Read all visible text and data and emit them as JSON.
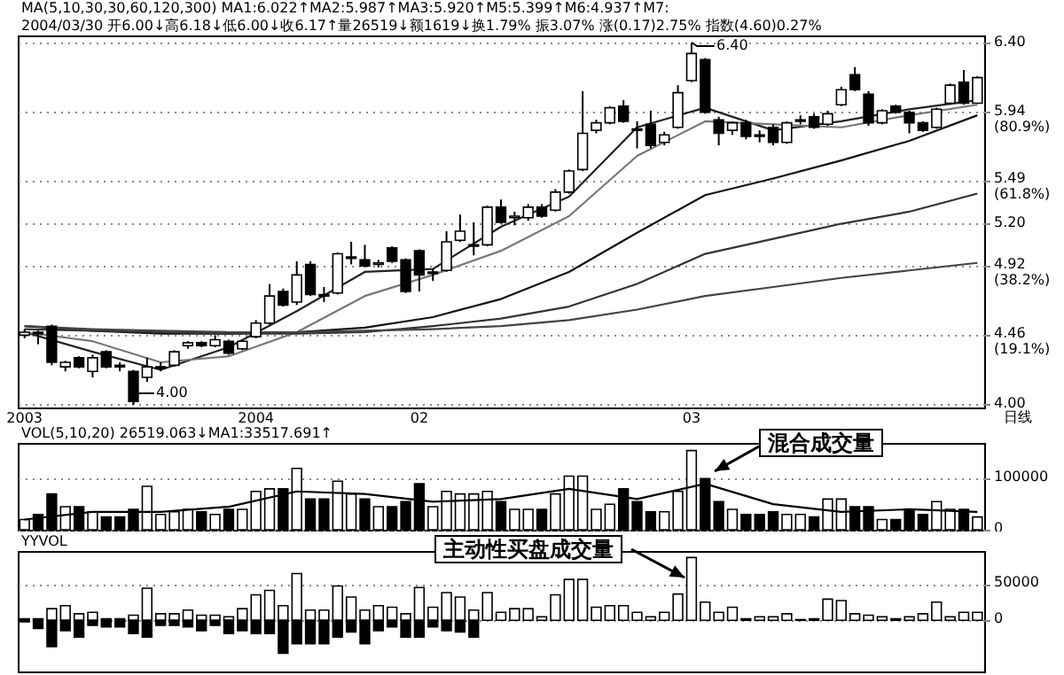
{
  "chart_data": [
    {
      "type": "candlestick",
      "categories": [
        "2003",
        null,
        null,
        null,
        null,
        null,
        null,
        null,
        null,
        null,
        null,
        null,
        null,
        null,
        null,
        null,
        null,
        "2004",
        null,
        null,
        null,
        null,
        null,
        null,
        null,
        null,
        null,
        null,
        null,
        "02",
        null,
        null,
        null,
        null,
        null,
        null,
        null,
        null,
        null,
        null,
        null,
        null,
        null,
        null,
        null,
        null,
        null,
        null,
        null,
        "03",
        null,
        null,
        null,
        null,
        null,
        null,
        null,
        null,
        null,
        null,
        null,
        null,
        null,
        null,
        null,
        null,
        null,
        null,
        null,
        null,
        null
      ],
      "ohlc": [
        [
          4.46,
          4.5,
          4.44,
          4.48
        ],
        [
          4.48,
          4.49,
          4.4,
          4.47
        ],
        [
          4.52,
          4.53,
          4.26,
          4.28
        ],
        [
          4.25,
          4.29,
          4.22,
          4.28
        ],
        [
          4.31,
          4.32,
          4.24,
          4.25
        ],
        [
          4.22,
          4.33,
          4.18,
          4.31
        ],
        [
          4.35,
          4.36,
          4.24,
          4.25
        ],
        [
          4.26,
          4.28,
          4.22,
          4.25
        ],
        [
          4.22,
          4.23,
          4.0,
          4.02
        ],
        [
          4.18,
          4.31,
          4.15,
          4.25
        ],
        [
          4.24,
          4.28,
          4.22,
          4.25
        ],
        [
          4.26,
          4.36,
          4.25,
          4.35
        ],
        [
          4.39,
          4.42,
          4.37,
          4.41
        ],
        [
          4.41,
          4.42,
          4.38,
          4.39
        ],
        [
          4.39,
          4.46,
          4.38,
          4.43
        ],
        [
          4.42,
          4.43,
          4.33,
          4.34
        ],
        [
          4.37,
          4.43,
          4.36,
          4.42
        ],
        [
          4.45,
          4.56,
          4.44,
          4.54
        ],
        [
          4.54,
          4.8,
          4.53,
          4.72
        ],
        [
          4.75,
          4.77,
          4.65,
          4.66
        ],
        [
          4.68,
          4.95,
          4.66,
          4.86
        ],
        [
          4.93,
          4.95,
          4.72,
          4.73
        ],
        [
          4.73,
          4.78,
          4.68,
          4.72
        ],
        [
          4.74,
          5.01,
          4.73,
          5.0
        ],
        [
          4.97,
          5.08,
          4.93,
          4.98
        ],
        [
          4.96,
          5.06,
          4.91,
          4.92
        ],
        [
          4.93,
          4.96,
          4.91,
          4.94
        ],
        [
          5.04,
          5.05,
          4.94,
          4.95
        ],
        [
          4.96,
          4.97,
          4.74,
          4.75
        ],
        [
          5.02,
          5.03,
          4.75,
          4.86
        ],
        [
          4.87,
          4.9,
          4.82,
          4.88
        ],
        [
          4.89,
          5.15,
          4.88,
          5.08
        ],
        [
          5.09,
          5.26,
          5.08,
          5.15
        ],
        [
          5.05,
          5.21,
          4.99,
          5.06
        ],
        [
          5.06,
          5.32,
          5.05,
          5.31
        ],
        [
          5.31,
          5.36,
          5.2,
          5.21
        ],
        [
          5.24,
          5.28,
          5.19,
          5.25
        ],
        [
          5.24,
          5.33,
          5.22,
          5.31
        ],
        [
          5.31,
          5.33,
          5.24,
          5.25
        ],
        [
          5.29,
          5.43,
          5.28,
          5.41
        ],
        [
          5.41,
          5.56,
          5.4,
          5.55
        ],
        [
          5.56,
          6.08,
          5.55,
          5.8
        ],
        [
          5.82,
          5.89,
          5.8,
          5.87
        ],
        [
          5.87,
          5.98,
          5.86,
          5.97
        ],
        [
          5.98,
          6.02,
          5.87,
          5.88
        ],
        [
          5.83,
          5.88,
          5.7,
          5.82
        ],
        [
          5.86,
          5.95,
          5.7,
          5.72
        ],
        [
          5.74,
          5.81,
          5.72,
          5.79
        ],
        [
          5.84,
          6.12,
          5.83,
          6.07
        ],
        [
          6.15,
          6.4,
          6.14,
          6.33
        ],
        [
          6.29,
          6.3,
          5.93,
          5.94
        ],
        [
          5.89,
          5.91,
          5.72,
          5.8
        ],
        [
          5.82,
          5.88,
          5.79,
          5.87
        ],
        [
          5.87,
          5.89,
          5.76,
          5.78
        ],
        [
          5.79,
          5.82,
          5.74,
          5.78
        ],
        [
          5.84,
          5.86,
          5.72,
          5.74
        ],
        [
          5.74,
          5.88,
          5.73,
          5.87
        ],
        [
          5.88,
          5.92,
          5.86,
          5.89
        ],
        [
          5.91,
          5.93,
          5.83,
          5.84
        ],
        [
          5.86,
          5.95,
          5.85,
          5.93
        ],
        [
          5.99,
          6.11,
          5.98,
          6.09
        ],
        [
          6.19,
          6.24,
          6.08,
          6.09
        ],
        [
          6.06,
          6.08,
          5.85,
          5.87
        ],
        [
          5.87,
          5.96,
          5.86,
          5.95
        ],
        [
          5.98,
          5.99,
          5.93,
          5.94
        ],
        [
          5.94,
          5.95,
          5.8,
          5.87
        ],
        [
          5.87,
          5.88,
          5.81,
          5.82
        ],
        [
          5.84,
          5.97,
          5.83,
          5.96
        ],
        [
          6.0,
          6.13,
          5.99,
          6.12
        ],
        [
          6.14,
          6.22,
          5.99,
          6.0
        ],
        [
          6.0,
          6.18,
          6.0,
          6.17
        ]
      ],
      "series": [
        {
          "type": "line",
          "color": "#222222",
          "values": [
            4.48,
            null,
            null,
            null,
            null,
            4.35,
            null,
            null,
            null,
            null,
            4.23,
            null,
            null,
            null,
            null,
            4.38,
            null,
            null,
            null,
            null,
            4.62,
            null,
            null,
            null,
            null,
            4.88,
            null,
            null,
            null,
            null,
            4.9,
            null,
            null,
            null,
            null,
            5.18,
            null,
            null,
            null,
            null,
            5.38,
            null,
            null,
            null,
            null,
            5.84,
            null,
            null,
            null,
            null,
            5.97,
            null,
            null,
            null,
            null,
            5.82,
            null,
            null,
            null,
            null,
            5.88,
            null,
            null,
            null,
            null,
            5.96,
            null,
            null,
            null,
            null,
            6.02
          ]
        },
        {
          "type": "line",
          "color": "#777777",
          "values": [
            4.48,
            null,
            null,
            null,
            null,
            4.42,
            null,
            null,
            null,
            null,
            4.28,
            null,
            null,
            null,
            null,
            4.32,
            null,
            null,
            null,
            null,
            4.48,
            null,
            null,
            null,
            null,
            4.72,
            null,
            null,
            null,
            null,
            4.86,
            null,
            null,
            null,
            null,
            5.02,
            null,
            null,
            null,
            null,
            5.25,
            null,
            null,
            null,
            null,
            5.65,
            null,
            null,
            null,
            null,
            5.88,
            null,
            null,
            null,
            null,
            5.86,
            null,
            null,
            null,
            null,
            5.84,
            null,
            null,
            null,
            null,
            5.92,
            null,
            null,
            null,
            null,
            5.99
          ]
        },
        {
          "type": "line",
          "color": "#111111",
          "values": [
            4.52,
            null,
            null,
            null,
            null,
            4.49,
            null,
            null,
            null,
            null,
            4.47,
            null,
            null,
            null,
            null,
            4.47,
            null,
            null,
            null,
            null,
            4.48,
            null,
            null,
            null,
            null,
            4.51,
            null,
            null,
            null,
            null,
            4.58,
            null,
            null,
            null,
            null,
            4.7,
            null,
            null,
            null,
            null,
            4.88,
            null,
            null,
            null,
            null,
            5.14,
            null,
            null,
            null,
            null,
            5.39,
            null,
            null,
            null,
            null,
            5.5,
            null,
            null,
            null,
            null,
            5.62,
            null,
            null,
            null,
            null,
            5.75,
            null,
            null,
            null,
            null,
            5.92
          ]
        },
        {
          "type": "line",
          "color": "#333333",
          "values": [
            4.5,
            null,
            null,
            null,
            null,
            4.49,
            null,
            null,
            null,
            null,
            4.48,
            null,
            null,
            null,
            null,
            4.47,
            null,
            null,
            null,
            null,
            4.47,
            null,
            null,
            null,
            null,
            4.48,
            null,
            null,
            null,
            null,
            4.52,
            null,
            null,
            null,
            null,
            4.57,
            null,
            null,
            null,
            null,
            4.65,
            null,
            null,
            null,
            null,
            4.8,
            null,
            null,
            null,
            null,
            5.0,
            null,
            null,
            null,
            null,
            5.1,
            null,
            null,
            null,
            null,
            5.2,
            null,
            null,
            null,
            null,
            5.28,
            null,
            null,
            null,
            null,
            5.4
          ]
        },
        {
          "type": "line",
          "color": "#444444",
          "values": [
            4.52,
            null,
            null,
            null,
            null,
            4.5,
            null,
            null,
            null,
            null,
            4.49,
            null,
            null,
            null,
            null,
            4.48,
            null,
            null,
            null,
            null,
            4.48,
            null,
            null,
            null,
            null,
            4.49,
            null,
            null,
            null,
            null,
            4.5,
            null,
            null,
            null,
            null,
            4.52,
            null,
            null,
            null,
            null,
            4.56,
            null,
            null,
            null,
            null,
            4.63,
            null,
            null,
            null,
            null,
            4.72,
            null,
            null,
            null,
            null,
            4.78,
            null,
            null,
            null,
            null,
            4.84,
            null,
            null,
            null,
            null,
            4.89,
            null,
            null,
            null,
            null,
            4.94
          ]
        }
      ],
      "ylim": [
        3.98,
        6.45
      ],
      "yticks": [
        {
          "value": 6.4,
          "label": "6.40"
        },
        {
          "value": 5.94,
          "label": "5.94\n(80.9%)"
        },
        {
          "value": 5.49,
          "label": "5.49\n(61.8%)"
        },
        {
          "value": 5.2,
          "label": "5.20"
        },
        {
          "value": 4.92,
          "label": "4.92\n(38.2%)"
        },
        {
          "value": 4.46,
          "label": "4.46\n(19.1%)"
        },
        {
          "value": 4,
          "label": "4.00"
        }
      ],
      "grid": "y",
      "annotations": [
        "MA(5,10,30,30,60,120,300) MA1:6.022↑MA2:5.987↑MA3:5.920↑M5:5.399↑M6:4.937↑M7:",
        "2004/03/30 开6.00↓高6.18↓低6.00↓收6.17↑量26519↓额1619↓换1.79% 振3.07% 涨(0.17)2.75% 指数(4.60)0.27%",
        "6.40",
        "4.00"
      ]
    },
    {
      "type": "bar",
      "categories": [
        "2003",
        null,
        null,
        null,
        null,
        null,
        null,
        null,
        null,
        null,
        null,
        null,
        null,
        null,
        null,
        null,
        null,
        "2004",
        null,
        null,
        null,
        null,
        null,
        null,
        null,
        null,
        null,
        null,
        null,
        "02",
        null,
        null,
        null,
        null,
        null,
        null,
        null,
        null,
        null,
        null,
        null,
        null,
        null,
        null,
        null,
        null,
        null,
        null,
        null,
        "03",
        null,
        null,
        null,
        null,
        null,
        null,
        null,
        null,
        null,
        null,
        null,
        null,
        null,
        null,
        null,
        null,
        null,
        null,
        null,
        null,
        null
      ],
      "series": [
        {
          "type": "bar",
          "colors": [
            "#ffffff",
            "#000000",
            "#000000",
            "#ffffff",
            "#000000",
            "#ffffff",
            "#000000",
            "#000000",
            "#000000",
            "#ffffff",
            "#ffffff",
            "#ffffff",
            "#ffffff",
            "#000000",
            "#ffffff",
            "#000000",
            "#ffffff",
            "#ffffff",
            "#ffffff",
            "#000000",
            "#ffffff",
            "#000000",
            "#000000",
            "#ffffff",
            "#ffffff",
            "#000000",
            "#ffffff",
            "#000000",
            "#000000",
            "#000000",
            "#ffffff",
            "#ffffff",
            "#ffffff",
            "#ffffff",
            "#ffffff",
            "#000000",
            "#ffffff",
            "#ffffff",
            "#000000",
            "#ffffff",
            "#ffffff",
            "#ffffff",
            "#ffffff",
            "#ffffff",
            "#000000",
            "#000000",
            "#000000",
            "#ffffff",
            "#ffffff",
            "#ffffff",
            "#000000",
            "#000000",
            "#ffffff",
            "#000000",
            "#000000",
            "#000000",
            "#ffffff",
            "#ffffff",
            "#000000",
            "#ffffff",
            "#ffffff",
            "#000000",
            "#000000",
            "#ffffff",
            "#000000",
            "#000000",
            "#000000",
            "#ffffff",
            "#ffffff",
            "#000000",
            "#ffffff"
          ],
          "values": [
            20000,
            30000,
            70000,
            45000,
            45000,
            35000,
            25000,
            25000,
            40000,
            85000,
            30000,
            35000,
            40000,
            35000,
            30000,
            40000,
            40000,
            75000,
            80000,
            80000,
            120000,
            60000,
            60000,
            95000,
            70000,
            60000,
            45000,
            45000,
            55000,
            90000,
            45000,
            75000,
            70000,
            70000,
            75000,
            55000,
            40000,
            40000,
            40000,
            70000,
            105000,
            105000,
            40000,
            50000,
            80000,
            55000,
            35000,
            35000,
            75000,
            155000,
            100000,
            55000,
            40000,
            30000,
            30000,
            35000,
            30000,
            30000,
            25000,
            60000,
            60000,
            45000,
            45000,
            20000,
            20000,
            40000,
            30000,
            55000,
            40000,
            40000,
            25000
          ]
        },
        {
          "type": "line",
          "color": "#000000",
          "values": [
            20000,
            null,
            null,
            null,
            null,
            35000,
            null,
            null,
            null,
            null,
            35000,
            null,
            null,
            null,
            null,
            45000,
            null,
            null,
            null,
            null,
            75000,
            null,
            null,
            null,
            null,
            70000,
            null,
            null,
            null,
            null,
            55000,
            null,
            null,
            null,
            null,
            60000,
            null,
            null,
            null,
            null,
            80000,
            null,
            null,
            null,
            null,
            60000,
            null,
            null,
            null,
            null,
            90000,
            null,
            null,
            null,
            null,
            50000,
            null,
            null,
            null,
            null,
            35000,
            null,
            null,
            null,
            null,
            40000,
            null,
            null,
            null,
            null,
            35000
          ]
        }
      ],
      "ylim": [
        0,
        170000
      ],
      "yticks": [
        0,
        100000
      ],
      "grid": "y",
      "tick_labels": "y",
      "annotations": [
        "VOL(5,10,20) 26519.063↓MA1:33517.691↑",
        "混合成交量",
        "日线"
      ]
    },
    {
      "type": "bar",
      "categories": [
        "2003",
        null,
        null,
        null,
        null,
        null,
        null,
        null,
        null,
        null,
        null,
        null,
        null,
        null,
        null,
        null,
        null,
        "2004",
        null,
        null,
        null,
        null,
        null,
        null,
        null,
        null,
        null,
        null,
        null,
        "02",
        null,
        null,
        null,
        null,
        null,
        null,
        null,
        null,
        null,
        null,
        null,
        null,
        null,
        null,
        null,
        null,
        null,
        null,
        null,
        "03",
        null,
        null,
        null,
        null,
        null,
        null,
        null,
        null,
        null,
        null,
        null,
        null,
        null,
        null,
        null,
        null,
        null,
        null,
        null,
        null,
        null
      ],
      "series": [
        {
          "type": "bar",
          "color": "#ffffff",
          "values": [
            2000,
            2000,
            16000,
            20000,
            9000,
            11000,
            2000,
            2000,
            7000,
            44000,
            9000,
            9000,
            14000,
            7000,
            7000,
            5000,
            16000,
            35000,
            41000,
            20000,
            64000,
            14000,
            14000,
            47000,
            32000,
            14000,
            20000,
            18000,
            9000,
            45000,
            18000,
            38000,
            32000,
            14000,
            38000,
            11000,
            16000,
            16000,
            5000,
            35000,
            56000,
            56000,
            18000,
            20000,
            20000,
            11000,
            5000,
            11000,
            36000,
            86000,
            25000,
            11000,
            18000,
            2000,
            5000,
            5000,
            9000,
            1000,
            2000,
            29000,
            27000,
            9000,
            7000,
            5000,
            2000,
            5000,
            9000,
            25000,
            5000,
            11000,
            11000
          ]
        },
        {
          "type": "bar",
          "color": "#000000",
          "values": [
            -2000,
            -11000,
            -36000,
            -14000,
            -23000,
            -7000,
            -9000,
            -9000,
            -18000,
            -23000,
            -7000,
            -7000,
            -9000,
            -14000,
            -7000,
            -18000,
            -14000,
            -18000,
            -18000,
            -45000,
            -32000,
            -32000,
            -32000,
            -23000,
            -16000,
            -32000,
            -14000,
            -9000,
            -23000,
            -23000,
            -9000,
            -14000,
            -16000,
            -23000,
            null,
            null,
            null,
            null,
            null,
            null,
            null,
            null,
            null,
            null,
            null,
            null,
            null,
            null,
            null,
            null,
            null,
            null,
            null,
            null,
            null,
            null,
            null,
            null,
            null,
            null,
            null,
            null,
            null,
            null,
            null,
            null,
            null,
            null,
            null,
            null,
            null
          ]
        }
      ],
      "ylim": [
        -70000,
        95000
      ],
      "yticks": [
        0,
        50000
      ],
      "grid": "y",
      "tick_labels": "y",
      "annotations": [
        "YYVOL",
        "主动性买盘成交量"
      ]
    }
  ]
}
